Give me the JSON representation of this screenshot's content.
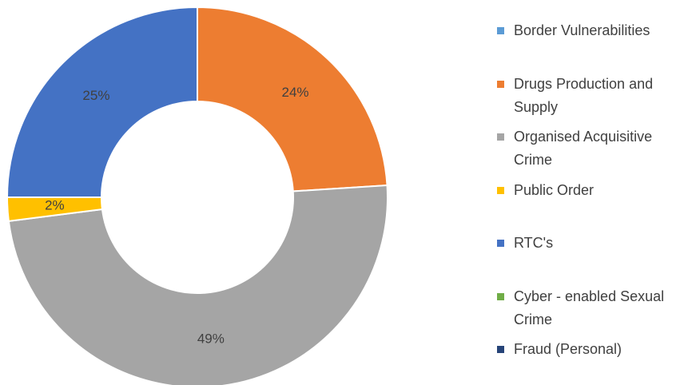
{
  "chart_data": {
    "type": "donut",
    "categories": [
      "Border Vulnerabilities",
      "Drugs Production and Supply",
      "Organised Acquisitive Crime",
      "Public Order",
      "RTC's",
      "Cyber - enabled Sexual Crime",
      "Fraud (Personal)"
    ],
    "values": [
      0,
      24,
      49,
      2,
      25,
      0,
      0
    ],
    "value_labels": [
      null,
      "24%",
      "49%",
      "2%",
      "25%",
      null,
      null
    ],
    "colors": [
      "#5b9bd5",
      "#ed7d31",
      "#a5a5a5",
      "#ffc000",
      "#4472c4",
      "#70ad47",
      "#264478"
    ],
    "legend": "right"
  }
}
